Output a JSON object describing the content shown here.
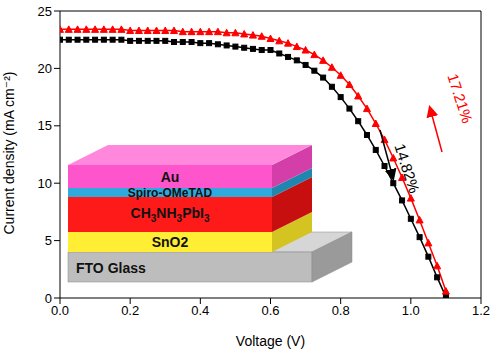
{
  "chart_data": {
    "type": "line",
    "x_label": "Voltage (V)",
    "y_label": "Current density (mA cm⁻²)",
    "xlim": [
      0,
      1.2
    ],
    "xticks": [
      {
        "value": 0,
        "label": "0.0"
      },
      0.2,
      0.4,
      0.6,
      0.8,
      {
        "value": 1,
        "label": "1.0"
      },
      1.2
    ],
    "ylim": [
      0,
      25
    ],
    "yticks": [
      0,
      5,
      10,
      15,
      20,
      25
    ],
    "grid": false,
    "x": [
      0,
      0.025,
      0.05,
      0.075,
      0.1,
      0.125,
      0.15,
      0.175,
      0.2,
      0.225,
      0.25,
      0.275,
      0.3,
      0.325,
      0.35,
      0.375,
      0.4,
      0.425,
      0.45,
      0.475,
      0.5,
      0.525,
      0.55,
      0.575,
      0.6,
      0.625,
      0.65,
      0.675,
      0.7,
      0.725,
      0.75,
      0.775,
      0.8,
      0.825,
      0.85,
      0.875,
      0.9,
      0.925,
      0.95,
      0.975,
      1.0,
      1.025,
      1.05,
      1.075,
      1.1
    ],
    "series": [
      {
        "color": "#000000",
        "marker": "square",
        "values": [
          22.5,
          22.5,
          22.5,
          22.5,
          22.5,
          22.5,
          22.5,
          22.5,
          22.4,
          22.4,
          22.4,
          22.4,
          22.4,
          22.3,
          22.3,
          22.3,
          22.2,
          22.2,
          22.1,
          22.0,
          21.9,
          21.8,
          21.7,
          21.6,
          21.6,
          21.3,
          21.0,
          20.7,
          20.3,
          19.8,
          19.2,
          18.4,
          17.5,
          16.5,
          15.4,
          14.2,
          12.9,
          11.5,
          10.0,
          8.5,
          6.9,
          5.3,
          3.6,
          1.8,
          0.1
        ]
      },
      {
        "color": "#ff0000",
        "marker": "triangle",
        "values": [
          23.4,
          23.4,
          23.4,
          23.4,
          23.4,
          23.4,
          23.4,
          23.4,
          23.3,
          23.3,
          23.3,
          23.3,
          23.3,
          23.3,
          23.2,
          23.2,
          23.2,
          23.2,
          23.2,
          23.1,
          23.1,
          23.0,
          22.9,
          22.8,
          22.6,
          22.4,
          22.2,
          21.9,
          21.6,
          21.2,
          20.7,
          20.1,
          19.4,
          18.6,
          17.6,
          16.5,
          15.2,
          13.8,
          12.2,
          10.5,
          8.7,
          6.8,
          4.8,
          2.8,
          0.6
        ]
      }
    ],
    "annotations": [
      {
        "text": "14.82%",
        "color": "#000000"
      },
      {
        "text": "17.21%",
        "color": "#ff0000"
      }
    ],
    "inset": {
      "layers": [
        "Au",
        "Spiro-OMeTAD",
        "CH3NH3PbI3",
        "SnO2",
        "FTO Glass"
      ]
    }
  }
}
